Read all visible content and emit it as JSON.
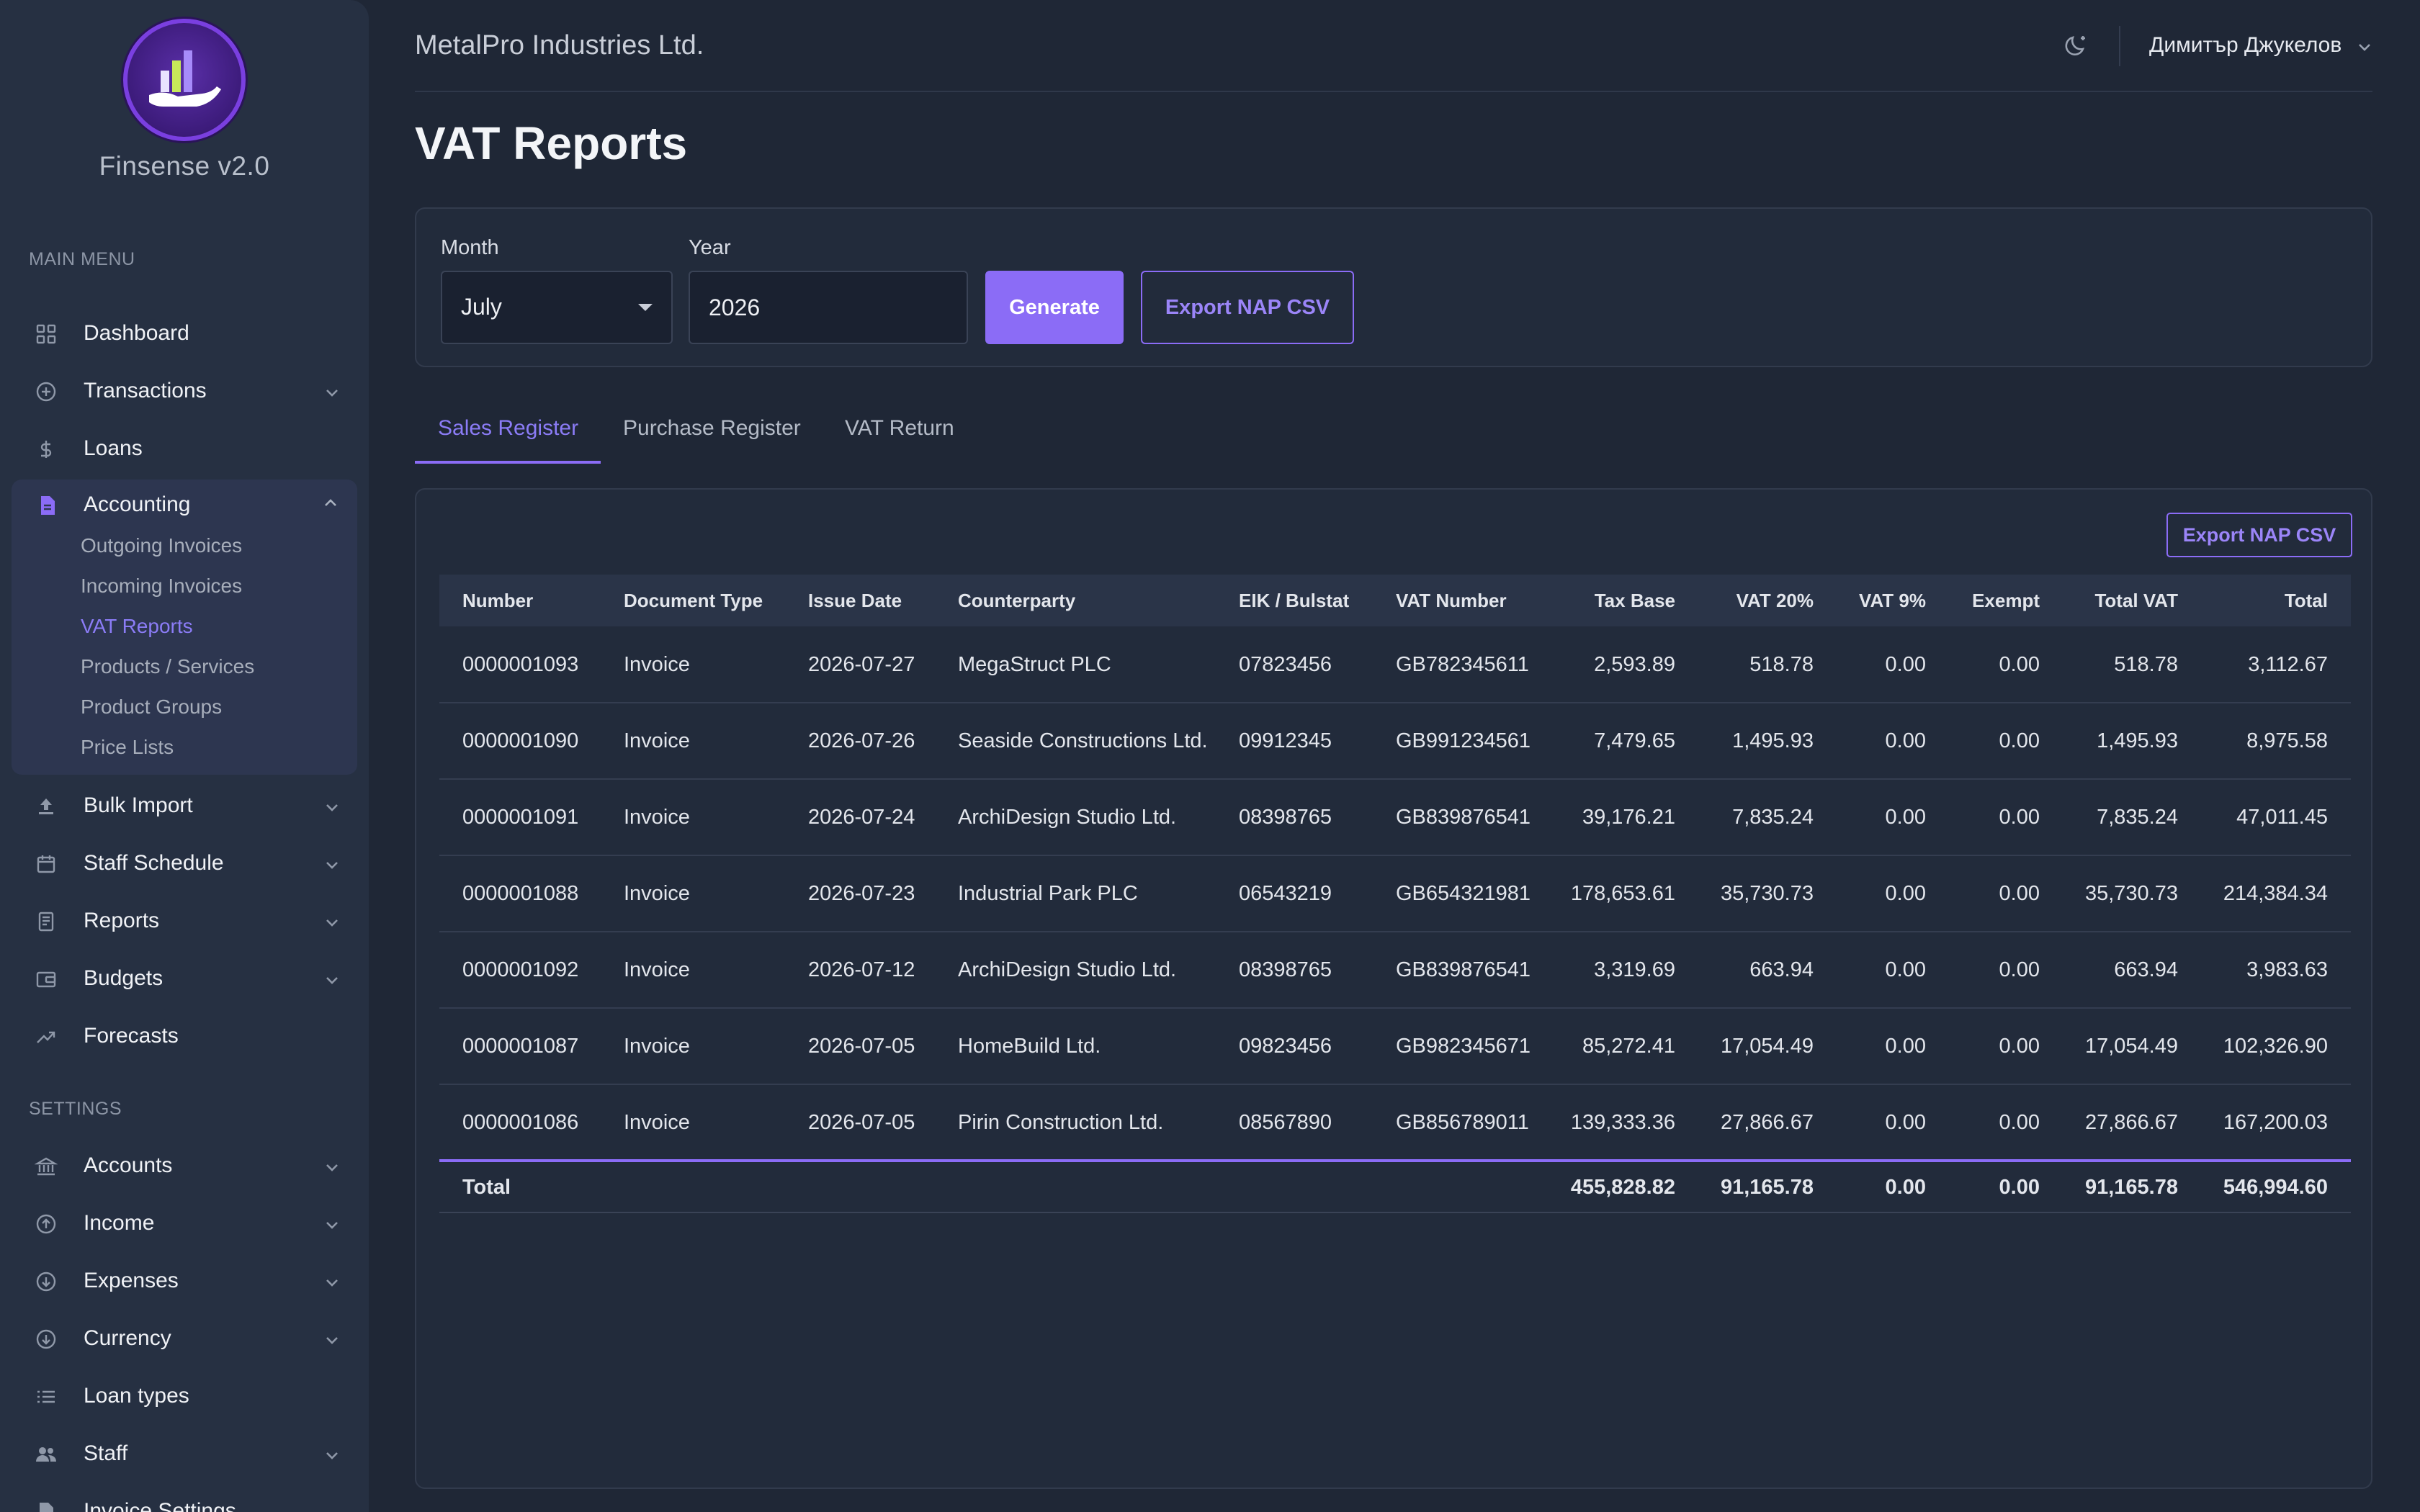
{
  "app": {
    "name": "Finsense v2.0",
    "company": "MetalPro Industries Ltd.",
    "user": "Димитър Джукелов"
  },
  "sidebar": {
    "main_menu_label": "MAIN MENU",
    "settings_label": "SETTINGS",
    "main_items": [
      {
        "label": "Dashboard",
        "icon": "grid-icon",
        "expandable": false
      },
      {
        "label": "Transactions",
        "icon": "plus-circle-icon",
        "expandable": true
      },
      {
        "label": "Loans",
        "icon": "dollar-icon",
        "expandable": false
      }
    ],
    "accounting": {
      "label": "Accounting",
      "icon": "document-icon",
      "expanded": true,
      "children": [
        {
          "label": "Outgoing Invoices"
        },
        {
          "label": "Incoming Invoices"
        },
        {
          "label": "VAT Reports",
          "active": true
        },
        {
          "label": "Products / Services"
        },
        {
          "label": "Product Groups"
        },
        {
          "label": "Price Lists"
        }
      ]
    },
    "more_items": [
      {
        "label": "Bulk Import",
        "icon": "upload-icon",
        "expandable": true
      },
      {
        "label": "Staff Schedule",
        "icon": "calendar-icon",
        "expandable": true
      },
      {
        "label": "Reports",
        "icon": "report-icon",
        "expandable": true
      },
      {
        "label": "Budgets",
        "icon": "wallet-icon",
        "expandable": true
      },
      {
        "label": "Forecasts",
        "icon": "trend-icon",
        "expandable": false
      }
    ],
    "settings_items": [
      {
        "label": "Accounts",
        "icon": "bank-icon",
        "expandable": true
      },
      {
        "label": "Income",
        "icon": "arrow-up-circle-icon",
        "expandable": true
      },
      {
        "label": "Expenses",
        "icon": "arrow-down-circle-icon",
        "expandable": true
      },
      {
        "label": "Currency",
        "icon": "currency-circle-icon",
        "expandable": true
      },
      {
        "label": "Loan types",
        "icon": "list-icon",
        "expandable": false
      },
      {
        "label": "Staff",
        "icon": "people-icon",
        "expandable": true
      },
      {
        "label": "Invoice Settings",
        "icon": "invoice-icon",
        "expandable": false
      }
    ]
  },
  "page": {
    "title": "VAT Reports"
  },
  "filters": {
    "month_label": "Month",
    "month_value": "July",
    "year_label": "Year",
    "year_value": "2026",
    "generate_label": "Generate",
    "export_label": "Export NAP CSV"
  },
  "tabs": [
    {
      "label": "Sales Register",
      "active": true
    },
    {
      "label": "Purchase Register",
      "active": false
    },
    {
      "label": "VAT Return",
      "active": false
    }
  ],
  "register": {
    "export_label": "Export NAP CSV",
    "columns": [
      "Number",
      "Document Type",
      "Issue Date",
      "Counterparty",
      "EIK / Bulstat",
      "VAT Number",
      "Tax Base",
      "VAT 20%",
      "VAT 9%",
      "Exempt",
      "Total VAT",
      "Total"
    ],
    "rows": [
      [
        "0000001093",
        "Invoice",
        "2026-07-27",
        "MegaStruct PLC",
        "07823456",
        "GB782345611",
        "2,593.89",
        "518.78",
        "0.00",
        "0.00",
        "518.78",
        "3,112.67"
      ],
      [
        "0000001090",
        "Invoice",
        "2026-07-26",
        "Seaside Constructions Ltd.",
        "09912345",
        "GB991234561",
        "7,479.65",
        "1,495.93",
        "0.00",
        "0.00",
        "1,495.93",
        "8,975.58"
      ],
      [
        "0000001091",
        "Invoice",
        "2026-07-24",
        "ArchiDesign Studio Ltd.",
        "08398765",
        "GB839876541",
        "39,176.21",
        "7,835.24",
        "0.00",
        "0.00",
        "7,835.24",
        "47,011.45"
      ],
      [
        "0000001088",
        "Invoice",
        "2026-07-23",
        "Industrial Park PLC",
        "06543219",
        "GB654321981",
        "178,653.61",
        "35,730.73",
        "0.00",
        "0.00",
        "35,730.73",
        "214,384.34"
      ],
      [
        "0000001092",
        "Invoice",
        "2026-07-12",
        "ArchiDesign Studio Ltd.",
        "08398765",
        "GB839876541",
        "3,319.69",
        "663.94",
        "0.00",
        "0.00",
        "663.94",
        "3,983.63"
      ],
      [
        "0000001087",
        "Invoice",
        "2026-07-05",
        "HomeBuild Ltd.",
        "09823456",
        "GB982345671",
        "85,272.41",
        "17,054.49",
        "0.00",
        "0.00",
        "17,054.49",
        "102,326.90"
      ],
      [
        "0000001086",
        "Invoice",
        "2026-07-05",
        "Pirin Construction Ltd.",
        "08567890",
        "GB856789011",
        "139,333.36",
        "27,866.67",
        "0.00",
        "0.00",
        "27,866.67",
        "167,200.03"
      ]
    ],
    "total": {
      "label": "Total",
      "tax_base": "455,828.82",
      "vat_20": "91,165.78",
      "vat_9": "0.00",
      "exempt": "0.00",
      "total_vat": "91,165.78",
      "total": "546,994.60"
    }
  },
  "colors": {
    "accent": "#8b6cf6",
    "background": "#1f2736",
    "sidebar": "#263042"
  }
}
